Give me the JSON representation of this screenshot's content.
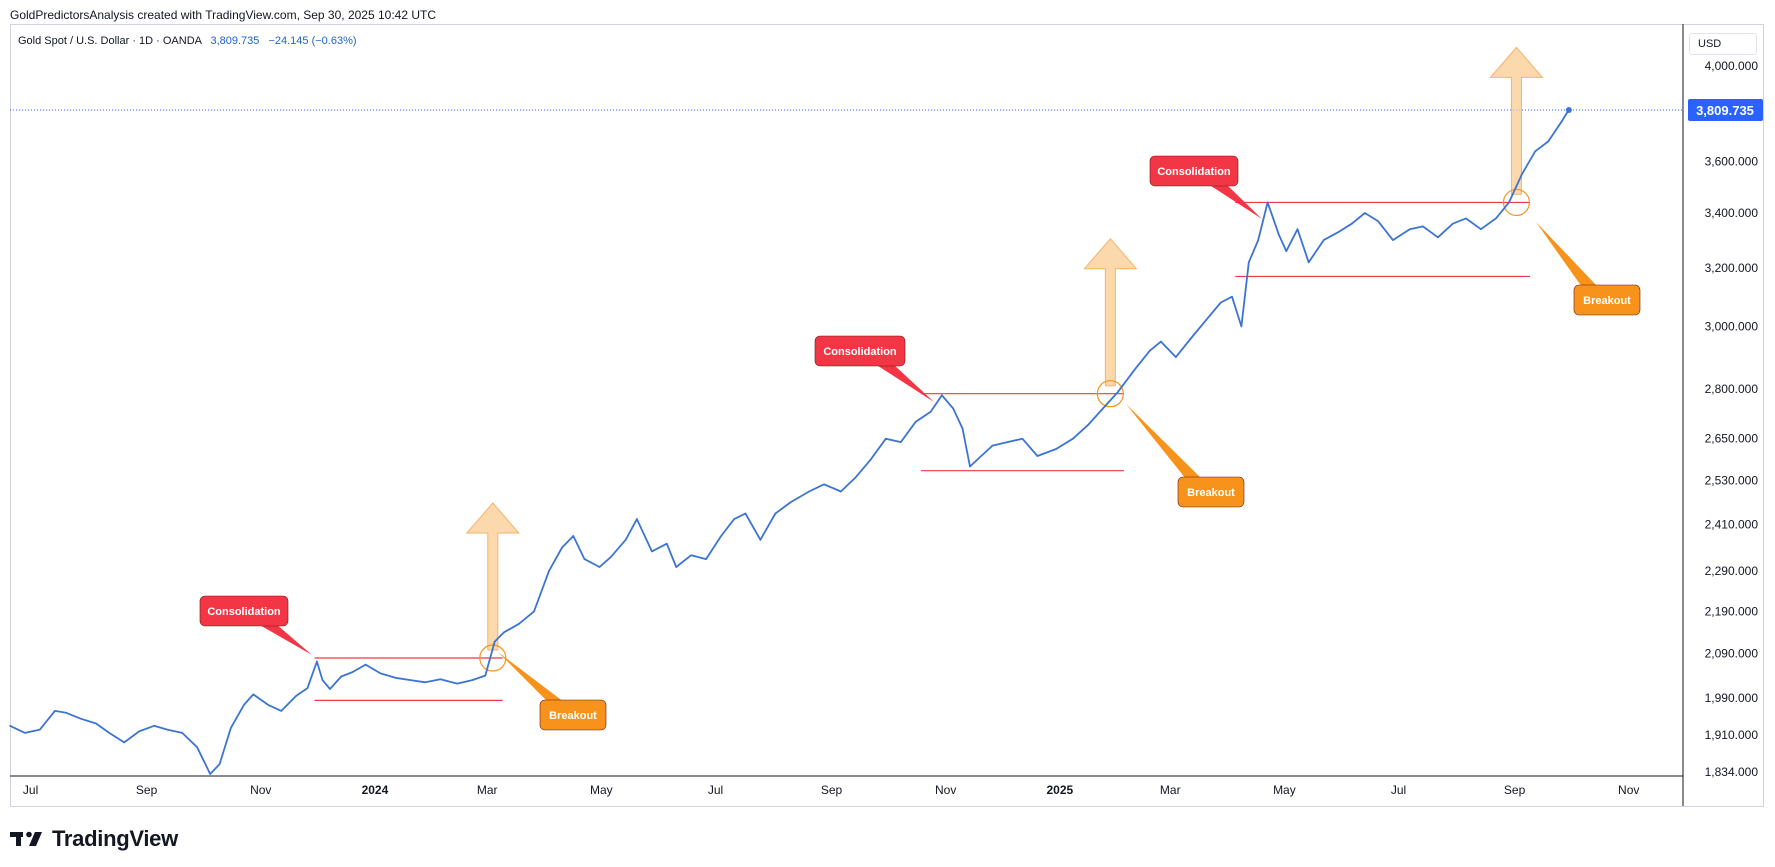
{
  "header": {
    "caption": "GoldPredictorsAnalysis created with TradingView.com, Sep 30, 2025 10:42 UTC"
  },
  "legend": {
    "symbol": "Gold Spot / U.S. Dollar · 1D · OANDA",
    "price": "3,809.735",
    "change": "−24.145 (−0.63%)"
  },
  "currency_label": "USD",
  "brand": {
    "name": "TradingView"
  },
  "colors": {
    "line": "#3c74d3",
    "consolidation_label": "#f23645",
    "breakout_label": "#f7931a",
    "level_line": "#f23645",
    "arrow": "#f9c98a",
    "price_badge": "#2962ff"
  },
  "chart_data": {
    "type": "line",
    "scale": "log",
    "ylim": [
      1834,
      4180
    ],
    "xlim": [
      "2023-06-20",
      "2025-11-30"
    ],
    "y_ticks": [
      1834,
      1910,
      1990,
      2090,
      2190,
      2290,
      2410,
      2530,
      2650,
      2800,
      3000,
      3200,
      3400,
      3600,
      4000
    ],
    "y_tick_labels": [
      "1,834.000",
      "1,910.000",
      "1,990.000",
      "2,090.000",
      "2,190.000",
      "2,290.000",
      "2,410.000",
      "2,530.000",
      "2,650.000",
      "2,800.000",
      "3,000.000",
      "3,200.000",
      "3,400.000",
      "3,600.000",
      "4,000.000"
    ],
    "x_ticks": [
      {
        "date": "2023-07-01",
        "label": "Jul",
        "bold": false
      },
      {
        "date": "2023-09-01",
        "label": "Sep",
        "bold": false
      },
      {
        "date": "2023-11-01",
        "label": "Nov",
        "bold": false
      },
      {
        "date": "2024-01-01",
        "label": "2024",
        "bold": true
      },
      {
        "date": "2024-03-01",
        "label": "Mar",
        "bold": false
      },
      {
        "date": "2024-05-01",
        "label": "May",
        "bold": false
      },
      {
        "date": "2024-07-01",
        "label": "Jul",
        "bold": false
      },
      {
        "date": "2024-09-01",
        "label": "Sep",
        "bold": false
      },
      {
        "date": "2024-11-01",
        "label": "Nov",
        "bold": false
      },
      {
        "date": "2025-01-01",
        "label": "2025",
        "bold": true
      },
      {
        "date": "2025-03-01",
        "label": "Mar",
        "bold": false
      },
      {
        "date": "2025-05-01",
        "label": "May",
        "bold": false
      },
      {
        "date": "2025-07-01",
        "label": "Jul",
        "bold": false
      },
      {
        "date": "2025-09-01",
        "label": "Sep",
        "bold": false
      },
      {
        "date": "2025-11-01",
        "label": "Nov",
        "bold": false
      }
    ],
    "last_price": 3809.735,
    "last_price_label": "3,809.735",
    "series": [
      {
        "x": [
          "2023-06-20",
          "2023-06-28",
          "2023-07-06",
          "2023-07-14",
          "2023-07-20",
          "2023-07-28",
          "2023-08-05",
          "2023-08-12",
          "2023-08-20",
          "2023-08-28",
          "2023-09-05",
          "2023-09-12",
          "2023-09-20",
          "2023-09-28",
          "2023-10-05",
          "2023-10-10",
          "2023-10-16",
          "2023-10-23",
          "2023-10-28",
          "2023-11-05",
          "2023-11-12",
          "2023-11-20",
          "2023-11-26",
          "2023-12-01",
          "2023-12-04",
          "2023-12-08",
          "2023-12-14",
          "2023-12-20",
          "2023-12-27",
          "2024-01-04",
          "2024-01-12",
          "2024-01-20",
          "2024-01-28",
          "2024-02-05",
          "2024-02-14",
          "2024-02-22",
          "2024-02-29",
          "2024-03-05",
          "2024-03-10",
          "2024-03-18",
          "2024-03-26",
          "2024-04-03",
          "2024-04-10",
          "2024-04-16",
          "2024-04-22",
          "2024-04-30",
          "2024-05-06",
          "2024-05-14",
          "2024-05-20",
          "2024-05-28",
          "2024-06-05",
          "2024-06-10",
          "2024-06-18",
          "2024-06-26",
          "2024-07-04",
          "2024-07-11",
          "2024-07-17",
          "2024-07-25",
          "2024-08-02",
          "2024-08-10",
          "2024-08-20",
          "2024-08-28",
          "2024-09-06",
          "2024-09-14",
          "2024-09-22",
          "2024-09-30",
          "2024-10-08",
          "2024-10-16",
          "2024-10-24",
          "2024-10-30",
          "2024-11-05",
          "2024-11-10",
          "2024-11-14",
          "2024-11-20",
          "2024-11-26",
          "2024-12-04",
          "2024-12-12",
          "2024-12-20",
          "2024-12-30",
          "2025-01-08",
          "2025-01-16",
          "2025-01-24",
          "2025-02-01",
          "2025-02-10",
          "2025-02-18",
          "2025-02-24",
          "2025-03-04",
          "2025-03-12",
          "2025-03-20",
          "2025-03-28",
          "2025-04-03",
          "2025-04-08",
          "2025-04-12",
          "2025-04-17",
          "2025-04-22",
          "2025-04-28",
          "2025-05-02",
          "2025-05-08",
          "2025-05-14",
          "2025-05-22",
          "2025-05-30",
          "2025-06-06",
          "2025-06-13",
          "2025-06-20",
          "2025-06-28",
          "2025-07-07",
          "2025-07-14",
          "2025-07-22",
          "2025-07-30",
          "2025-08-06",
          "2025-08-14",
          "2025-08-22",
          "2025-08-29",
          "2025-09-05",
          "2025-09-12",
          "2025-09-19",
          "2025-09-26",
          "2025-09-30"
        ],
        "y": [
          1930,
          1915,
          1922,
          1962,
          1958,
          1945,
          1935,
          1915,
          1895,
          1918,
          1930,
          1922,
          1915,
          1885,
          1830,
          1850,
          1925,
          1975,
          1998,
          1975,
          1962,
          1995,
          2012,
          2072,
          2030,
          2010,
          2038,
          2048,
          2065,
          2045,
          2035,
          2030,
          2025,
          2032,
          2022,
          2030,
          2040,
          2118,
          2140,
          2160,
          2190,
          2290,
          2350,
          2380,
          2320,
          2300,
          2325,
          2370,
          2425,
          2340,
          2360,
          2300,
          2330,
          2320,
          2380,
          2425,
          2440,
          2370,
          2440,
          2470,
          2500,
          2520,
          2500,
          2540,
          2590,
          2650,
          2640,
          2700,
          2730,
          2780,
          2740,
          2680,
          2570,
          2600,
          2630,
          2640,
          2650,
          2600,
          2620,
          2650,
          2690,
          2740,
          2790,
          2860,
          2920,
          2950,
          2900,
          2960,
          3020,
          3080,
          3100,
          3000,
          3220,
          3300,
          3440,
          3320,
          3260,
          3340,
          3220,
          3300,
          3330,
          3360,
          3400,
          3370,
          3300,
          3340,
          3350,
          3310,
          3360,
          3380,
          3340,
          3380,
          3440,
          3550,
          3640,
          3680,
          3760,
          3810
        ]
      }
    ],
    "annotations": [
      {
        "type": "label",
        "text": "Consolidation",
        "color": "consolidation"
      },
      {
        "type": "label",
        "text": "Breakout",
        "color": "breakout"
      },
      {
        "type": "label",
        "text": "Consolidation",
        "color": "consolidation"
      },
      {
        "type": "label",
        "text": "Breakout",
        "color": "breakout"
      },
      {
        "type": "label",
        "text": "Consolidation",
        "color": "consolidation"
      },
      {
        "type": "label",
        "text": "Breakout",
        "color": "breakout"
      }
    ],
    "ranges": [
      {
        "start": "2023-12-04",
        "end": "2024-03-05",
        "top": 2080,
        "bottom": 1985,
        "breakout_date": "2024-03-04"
      },
      {
        "start": "2024-10-23",
        "end": "2025-01-31",
        "top": 2785,
        "bottom": 2558,
        "breakout_date": "2025-01-28"
      },
      {
        "start": "2025-04-09",
        "end": "2025-09-05",
        "top": 3440,
        "bottom": 3170,
        "breakout_date": "2025-09-02"
      }
    ]
  }
}
